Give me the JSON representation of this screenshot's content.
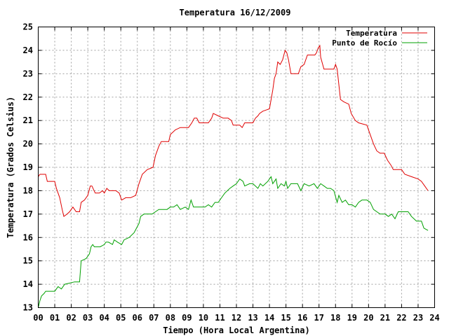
{
  "chart_data": {
    "type": "line",
    "title": "Temperatura 16/12/2009",
    "xlabel": "Tiempo (Hora Local Argentina)",
    "ylabel": "Temperatura (Grados Celsius)",
    "xlim": [
      0,
      24
    ],
    "ylim": [
      13,
      25
    ],
    "x_ticks": [
      "00",
      "01",
      "02",
      "03",
      "04",
      "05",
      "06",
      "07",
      "08",
      "09",
      "10",
      "11",
      "12",
      "13",
      "14",
      "15",
      "16",
      "17",
      "18",
      "19",
      "20",
      "21",
      "22",
      "23",
      "24"
    ],
    "y_ticks": [
      13,
      14,
      15,
      16,
      17,
      18,
      19,
      20,
      21,
      22,
      23,
      24,
      25
    ],
    "grid": true,
    "legend_position": "top-right",
    "series": [
      {
        "name": "Temperatura",
        "color": "#e00000",
        "points": [
          [
            0.0,
            18.6
          ],
          [
            0.1,
            18.7
          ],
          [
            0.45,
            18.7
          ],
          [
            0.55,
            18.4
          ],
          [
            1.0,
            18.4
          ],
          [
            1.1,
            18.1
          ],
          [
            1.3,
            17.7
          ],
          [
            1.45,
            17.2
          ],
          [
            1.55,
            16.9
          ],
          [
            1.75,
            17.0
          ],
          [
            1.9,
            17.1
          ],
          [
            2.1,
            17.3
          ],
          [
            2.3,
            17.1
          ],
          [
            2.5,
            17.1
          ],
          [
            2.6,
            17.5
          ],
          [
            2.8,
            17.6
          ],
          [
            3.0,
            17.8
          ],
          [
            3.15,
            18.2
          ],
          [
            3.25,
            18.2
          ],
          [
            3.45,
            17.9
          ],
          [
            3.7,
            17.9
          ],
          [
            3.9,
            18.0
          ],
          [
            4.0,
            17.9
          ],
          [
            4.15,
            18.1
          ],
          [
            4.3,
            18.0
          ],
          [
            4.5,
            18.0
          ],
          [
            4.7,
            18.0
          ],
          [
            4.9,
            17.9
          ],
          [
            5.05,
            17.6
          ],
          [
            5.3,
            17.7
          ],
          [
            5.6,
            17.7
          ],
          [
            5.9,
            17.8
          ],
          [
            6.1,
            18.3
          ],
          [
            6.3,
            18.7
          ],
          [
            6.6,
            18.9
          ],
          [
            6.95,
            19.0
          ],
          [
            7.1,
            19.5
          ],
          [
            7.3,
            19.9
          ],
          [
            7.45,
            20.1
          ],
          [
            7.9,
            20.1
          ],
          [
            8.0,
            20.4
          ],
          [
            8.3,
            20.6
          ],
          [
            8.6,
            20.7
          ],
          [
            9.1,
            20.7
          ],
          [
            9.3,
            20.9
          ],
          [
            9.45,
            21.1
          ],
          [
            9.6,
            21.1
          ],
          [
            9.75,
            20.9
          ],
          [
            10.3,
            20.9
          ],
          [
            10.5,
            21.1
          ],
          [
            10.6,
            21.3
          ],
          [
            10.9,
            21.2
          ],
          [
            11.2,
            21.1
          ],
          [
            11.5,
            21.1
          ],
          [
            11.7,
            21.0
          ],
          [
            11.8,
            20.8
          ],
          [
            12.2,
            20.8
          ],
          [
            12.35,
            20.7
          ],
          [
            12.5,
            20.9
          ],
          [
            12.75,
            20.9
          ],
          [
            13.0,
            20.9
          ],
          [
            13.15,
            21.1
          ],
          [
            13.3,
            21.2
          ],
          [
            13.4,
            21.3
          ],
          [
            13.6,
            21.4
          ],
          [
            14.0,
            21.5
          ],
          [
            14.2,
            22.3
          ],
          [
            14.3,
            22.8
          ],
          [
            14.4,
            23.0
          ],
          [
            14.5,
            23.5
          ],
          [
            14.65,
            23.4
          ],
          [
            14.8,
            23.6
          ],
          [
            14.95,
            24.0
          ],
          [
            15.05,
            23.9
          ],
          [
            15.15,
            23.6
          ],
          [
            15.3,
            23.0
          ],
          [
            15.75,
            23.0
          ],
          [
            15.9,
            23.3
          ],
          [
            16.1,
            23.4
          ],
          [
            16.3,
            23.8
          ],
          [
            16.75,
            23.8
          ],
          [
            16.85,
            23.9
          ],
          [
            16.95,
            24.1
          ],
          [
            17.05,
            24.2
          ],
          [
            17.1,
            23.7
          ],
          [
            17.3,
            23.2
          ],
          [
            17.5,
            23.2
          ],
          [
            17.9,
            23.2
          ],
          [
            18.0,
            23.4
          ],
          [
            18.1,
            23.2
          ],
          [
            18.3,
            21.9
          ],
          [
            18.5,
            21.8
          ],
          [
            18.8,
            21.7
          ],
          [
            18.95,
            21.3
          ],
          [
            19.2,
            21.0
          ],
          [
            19.4,
            20.9
          ],
          [
            19.9,
            20.8
          ],
          [
            20.05,
            20.5
          ],
          [
            20.3,
            20.0
          ],
          [
            20.5,
            19.7
          ],
          [
            20.7,
            19.6
          ],
          [
            20.95,
            19.6
          ],
          [
            21.15,
            19.3
          ],
          [
            21.35,
            19.1
          ],
          [
            21.5,
            18.9
          ],
          [
            22.0,
            18.9
          ],
          [
            22.2,
            18.7
          ],
          [
            22.6,
            18.6
          ],
          [
            23.0,
            18.5
          ],
          [
            23.2,
            18.4
          ],
          [
            23.4,
            18.2
          ],
          [
            23.6,
            18.0
          ]
        ]
      },
      {
        "name": "Punto de Rocío",
        "color": "#00a000",
        "points": [
          [
            0.0,
            13.0
          ],
          [
            0.1,
            13.3
          ],
          [
            0.2,
            13.5
          ],
          [
            0.35,
            13.6
          ],
          [
            0.45,
            13.7
          ],
          [
            0.6,
            13.7
          ],
          [
            1.0,
            13.7
          ],
          [
            1.2,
            13.9
          ],
          [
            1.4,
            13.8
          ],
          [
            1.6,
            14.0
          ],
          [
            2.2,
            14.1
          ],
          [
            2.5,
            14.1
          ],
          [
            2.6,
            15.0
          ],
          [
            2.9,
            15.1
          ],
          [
            3.1,
            15.3
          ],
          [
            3.2,
            15.6
          ],
          [
            3.3,
            15.7
          ],
          [
            3.4,
            15.6
          ],
          [
            3.75,
            15.6
          ],
          [
            4.0,
            15.7
          ],
          [
            4.1,
            15.8
          ],
          [
            4.25,
            15.8
          ],
          [
            4.5,
            15.7
          ],
          [
            4.6,
            15.9
          ],
          [
            4.8,
            15.8
          ],
          [
            5.05,
            15.7
          ],
          [
            5.2,
            15.9
          ],
          [
            5.5,
            16.0
          ],
          [
            5.8,
            16.2
          ],
          [
            5.95,
            16.4
          ],
          [
            6.1,
            16.6
          ],
          [
            6.2,
            16.9
          ],
          [
            6.4,
            17.0
          ],
          [
            6.6,
            17.0
          ],
          [
            6.9,
            17.0
          ],
          [
            7.1,
            17.1
          ],
          [
            7.3,
            17.2
          ],
          [
            7.5,
            17.2
          ],
          [
            7.8,
            17.2
          ],
          [
            8.0,
            17.3
          ],
          [
            8.2,
            17.3
          ],
          [
            8.4,
            17.4
          ],
          [
            8.6,
            17.2
          ],
          [
            8.9,
            17.3
          ],
          [
            9.1,
            17.2
          ],
          [
            9.25,
            17.6
          ],
          [
            9.4,
            17.3
          ],
          [
            9.7,
            17.3
          ],
          [
            10.1,
            17.3
          ],
          [
            10.3,
            17.4
          ],
          [
            10.5,
            17.3
          ],
          [
            10.7,
            17.5
          ],
          [
            10.9,
            17.5
          ],
          [
            11.1,
            17.7
          ],
          [
            11.3,
            17.9
          ],
          [
            11.6,
            18.1
          ],
          [
            11.8,
            18.2
          ],
          [
            12.0,
            18.3
          ],
          [
            12.2,
            18.5
          ],
          [
            12.4,
            18.4
          ],
          [
            12.5,
            18.2
          ],
          [
            12.8,
            18.3
          ],
          [
            13.0,
            18.3
          ],
          [
            13.3,
            18.1
          ],
          [
            13.45,
            18.3
          ],
          [
            13.6,
            18.2
          ],
          [
            13.9,
            18.4
          ],
          [
            14.1,
            18.6
          ],
          [
            14.2,
            18.3
          ],
          [
            14.4,
            18.5
          ],
          [
            14.5,
            18.1
          ],
          [
            14.7,
            18.3
          ],
          [
            14.9,
            18.2
          ],
          [
            15.0,
            18.4
          ],
          [
            15.1,
            18.1
          ],
          [
            15.3,
            18.3
          ],
          [
            15.5,
            18.3
          ],
          [
            15.7,
            18.3
          ],
          [
            15.9,
            18.0
          ],
          [
            16.1,
            18.3
          ],
          [
            16.4,
            18.2
          ],
          [
            16.7,
            18.3
          ],
          [
            16.9,
            18.1
          ],
          [
            17.1,
            18.3
          ],
          [
            17.3,
            18.2
          ],
          [
            17.5,
            18.1
          ],
          [
            17.7,
            18.1
          ],
          [
            17.9,
            18.0
          ],
          [
            18.1,
            17.5
          ],
          [
            18.2,
            17.8
          ],
          [
            18.4,
            17.5
          ],
          [
            18.6,
            17.6
          ],
          [
            18.8,
            17.4
          ],
          [
            19.0,
            17.4
          ],
          [
            19.2,
            17.3
          ],
          [
            19.4,
            17.5
          ],
          [
            19.6,
            17.6
          ],
          [
            19.9,
            17.6
          ],
          [
            20.1,
            17.5
          ],
          [
            20.3,
            17.2
          ],
          [
            20.5,
            17.1
          ],
          [
            20.7,
            17.0
          ],
          [
            21.0,
            17.0
          ],
          [
            21.2,
            16.9
          ],
          [
            21.4,
            17.0
          ],
          [
            21.6,
            16.8
          ],
          [
            21.8,
            17.1
          ],
          [
            22.0,
            17.1
          ],
          [
            22.4,
            17.1
          ],
          [
            22.6,
            16.9
          ],
          [
            22.9,
            16.7
          ],
          [
            23.2,
            16.7
          ],
          [
            23.35,
            16.4
          ],
          [
            23.6,
            16.3
          ]
        ]
      }
    ]
  }
}
